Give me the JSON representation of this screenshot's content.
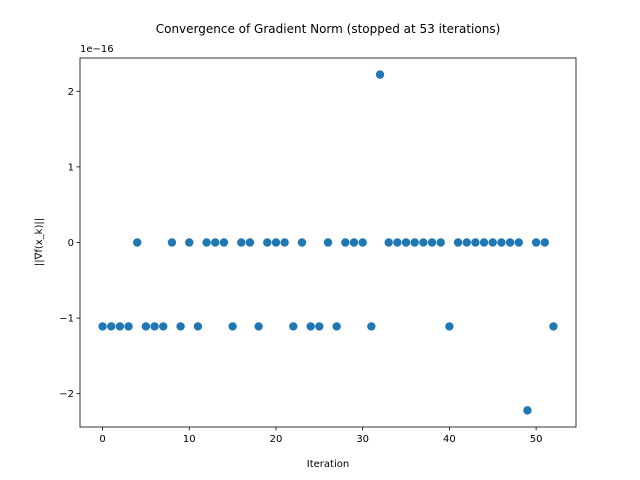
{
  "chart_data": {
    "type": "scatter",
    "title": "Convergence of Gradient Norm (stopped at 53 iterations)",
    "xlabel": "Iteration",
    "ylabel": "||∇f(x_k)||",
    "y_offset_label": "1e−16",
    "y_scale_exponent": -16,
    "xlim": [
      -2.6,
      54.6
    ],
    "ylim": [
      -2.44,
      2.44
    ],
    "x_ticks": [
      0,
      10,
      20,
      30,
      40,
      50
    ],
    "y_ticks": [
      -2,
      -1,
      0,
      1,
      2
    ],
    "y_tick_labels": [
      "−2",
      "−1",
      "0",
      "1",
      "2"
    ],
    "marker_color": "#1f77b4",
    "grid": false,
    "legend": "none",
    "series": [
      {
        "x": [
          0,
          1,
          2,
          3,
          4,
          5,
          6,
          7,
          8,
          9,
          10,
          11,
          12,
          13,
          14,
          15,
          16,
          17,
          18,
          19,
          20,
          21,
          22,
          23,
          24,
          25,
          26,
          27,
          28,
          29,
          30,
          31,
          32,
          33,
          34,
          35,
          36,
          37,
          38,
          39,
          40,
          41,
          42,
          43,
          44,
          45,
          46,
          47,
          48,
          49,
          50,
          51,
          52
        ],
        "y": [
          -1.11,
          -1.11,
          -1.11,
          -1.11,
          0,
          -1.11,
          -1.11,
          -1.11,
          0,
          -1.11,
          0,
          -1.11,
          0,
          0,
          0,
          -1.11,
          0,
          0,
          -1.11,
          0,
          0,
          0,
          -1.11,
          0,
          -1.11,
          -1.11,
          0,
          -1.11,
          0,
          0,
          0,
          -1.11,
          2.22,
          0,
          0,
          0,
          0,
          0,
          0,
          0,
          -1.11,
          0,
          0,
          0,
          0,
          0,
          0,
          0,
          0,
          -2.22,
          0,
          0,
          -1.11
        ]
      }
    ]
  }
}
